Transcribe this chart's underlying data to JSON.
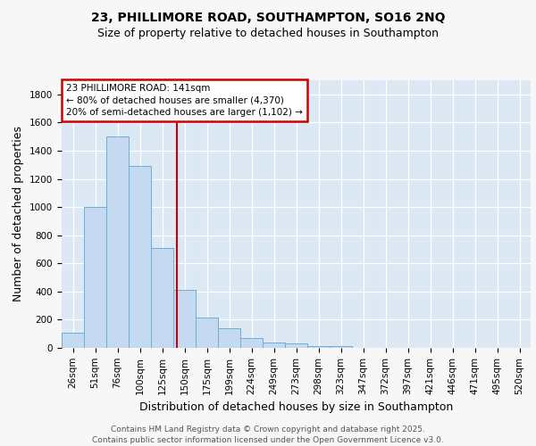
{
  "title_line1": "23, PHILLIMORE ROAD, SOUTHAMPTON, SO16 2NQ",
  "title_line2": "Size of property relative to detached houses in Southampton",
  "xlabel": "Distribution of detached houses by size in Southampton",
  "ylabel": "Number of detached properties",
  "categories": [
    "26sqm",
    "51sqm",
    "76sqm",
    "100sqm",
    "125sqm",
    "150sqm",
    "175sqm",
    "199sqm",
    "224sqm",
    "249sqm",
    "273sqm",
    "298sqm",
    "323sqm",
    "347sqm",
    "372sqm",
    "397sqm",
    "421sqm",
    "446sqm",
    "471sqm",
    "495sqm",
    "520sqm"
  ],
  "bar_heights": [
    110,
    1000,
    1500,
    1290,
    710,
    410,
    215,
    140,
    70,
    40,
    30,
    15,
    10,
    0,
    0,
    0,
    0,
    0,
    0,
    0,
    0
  ],
  "bar_color": "#c5d9f0",
  "bar_edge_color": "#6baed6",
  "plot_bg_color": "#dce9f5",
  "fig_bg_color": "#f7f7f7",
  "grid_color": "#ffffff",
  "ylim": [
    0,
    1900
  ],
  "yticks": [
    0,
    200,
    400,
    600,
    800,
    1000,
    1200,
    1400,
    1600,
    1800
  ],
  "red_line_x": 4.64,
  "annotation_title": "23 PHILLIMORE ROAD: 141sqm",
  "annotation_line2": "← 80% of detached houses are smaller (4,370)",
  "annotation_line3": "20% of semi-detached houses are larger (1,102) →",
  "annotation_color": "#cc0000",
  "footer_line1": "Contains HM Land Registry data © Crown copyright and database right 2025.",
  "footer_line2": "Contains public sector information licensed under the Open Government Licence v3.0.",
  "title_fontsize": 10,
  "subtitle_fontsize": 9,
  "axis_label_fontsize": 9,
  "tick_fontsize": 7.5,
  "annotation_fontsize": 7.5,
  "footer_fontsize": 6.5
}
